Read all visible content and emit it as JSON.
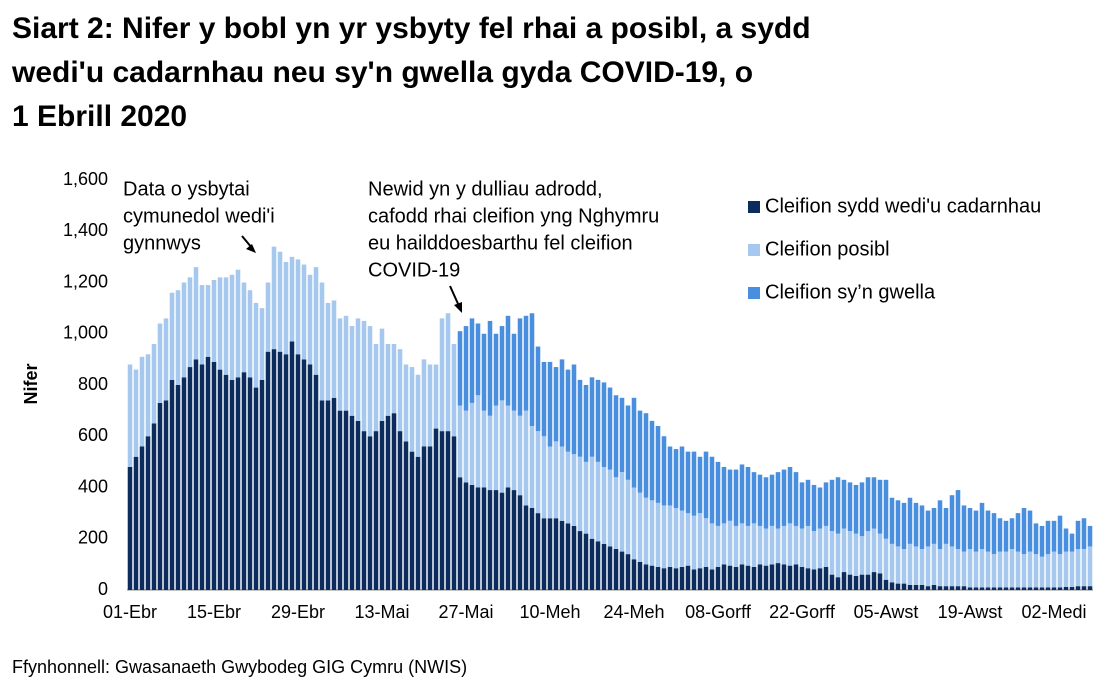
{
  "chart_data": {
    "type": "bar",
    "stacked": true,
    "title": [
      "Siart 2: Nifer y bobl yn yr ysbyty fel rhai a posibl, a sydd",
      "wedi'u cadarnhau neu sy'n gwella gyda COVID-19, o",
      "1 Ebrill 2020"
    ],
    "y_label": "Nifer",
    "source": "Ffynhonnell: Gwasanaeth Gwybodeg GIG Cymru (NWIS)",
    "annotations": [
      {
        "lines": [
          "Data o ysbytai",
          "cymunedol wedi'i",
          "gynnwys"
        ]
      },
      {
        "lines": [
          "Newid yn y dulliau adrodd,",
          "cafodd rhai cleifion yng Nghymru",
          "eu hailddoesbarthu fel cleifion",
          "COVID-19"
        ]
      }
    ],
    "ylim": [
      0,
      1600
    ],
    "yticks": [
      0,
      200,
      400,
      600,
      800,
      {
        "value": 1000,
        "label": "1,000"
      },
      {
        "value": 1200,
        "label": "1,200"
      },
      {
        "value": 1400,
        "label": "1,400"
      },
      {
        "value": 1600,
        "label": "1,600"
      }
    ],
    "grid": false,
    "legend": "top-right",
    "categories": [
      "01-Ebr",
      null,
      null,
      null,
      null,
      null,
      null,
      null,
      null,
      null,
      null,
      null,
      null,
      null,
      "15-Ebr",
      null,
      null,
      null,
      null,
      null,
      null,
      null,
      null,
      null,
      null,
      null,
      null,
      null,
      "29-Ebr",
      null,
      null,
      null,
      null,
      null,
      null,
      null,
      null,
      null,
      null,
      null,
      null,
      null,
      "13-Mai",
      null,
      null,
      null,
      null,
      null,
      null,
      null,
      null,
      null,
      null,
      null,
      null,
      null,
      "27-Mai",
      null,
      null,
      null,
      null,
      null,
      null,
      null,
      null,
      null,
      null,
      null,
      null,
      null,
      "10-Meh",
      null,
      null,
      null,
      null,
      null,
      null,
      null,
      null,
      null,
      null,
      null,
      null,
      null,
      "24-Meh",
      null,
      null,
      null,
      null,
      null,
      null,
      null,
      null,
      null,
      null,
      null,
      null,
      null,
      "08-Gorff",
      null,
      null,
      null,
      null,
      null,
      null,
      null,
      null,
      null,
      null,
      null,
      null,
      null,
      "22-Gorff",
      null,
      null,
      null,
      null,
      null,
      null,
      null,
      null,
      null,
      null,
      null,
      null,
      null,
      "05-Awst",
      null,
      null,
      null,
      null,
      null,
      null,
      null,
      null,
      null,
      null,
      null,
      null,
      null,
      "19-Awst",
      null,
      null,
      null,
      null,
      null,
      null,
      null,
      null,
      null,
      null,
      null,
      null,
      null,
      "02-Medi",
      null,
      null,
      null,
      null,
      null,
      null
    ],
    "series": [
      {
        "name": "Cleifion sydd wedi'u cadarnhau",
        "color": "#0c2c5e",
        "values": [
          480,
          520,
          560,
          600,
          650,
          730,
          740,
          820,
          800,
          830,
          870,
          900,
          880,
          910,
          890,
          860,
          840,
          820,
          830,
          850,
          830,
          790,
          820,
          930,
          940,
          930,
          920,
          970,
          920,
          900,
          880,
          840,
          740,
          740,
          750,
          700,
          700,
          680,
          660,
          620,
          600,
          620,
          660,
          680,
          690,
          620,
          580,
          540,
          520,
          560,
          560,
          630,
          620,
          620,
          600,
          440,
          420,
          410,
          400,
          400,
          390,
          390,
          380,
          400,
          390,
          370,
          330,
          320,
          300,
          280,
          280,
          280,
          270,
          260,
          250,
          230,
          220,
          200,
          190,
          180,
          170,
          160,
          150,
          140,
          120,
          110,
          100,
          95,
          90,
          85,
          90,
          85,
          90,
          95,
          80,
          85,
          90,
          80,
          90,
          100,
          95,
          90,
          100,
          95,
          90,
          100,
          95,
          100,
          105,
          100,
          95,
          100,
          90,
          85,
          80,
          85,
          90,
          60,
          50,
          70,
          60,
          55,
          60,
          60,
          70,
          65,
          40,
          30,
          25,
          25,
          20,
          20,
          20,
          15,
          20,
          15,
          15,
          15,
          15,
          15,
          10,
          10,
          10,
          10,
          10,
          10,
          10,
          10,
          10,
          10,
          10,
          10,
          10,
          10,
          10,
          10,
          12,
          12,
          15,
          15,
          15
        ]
      },
      {
        "name": "Cleifion posibl",
        "color": "#a6c8ef",
        "values": [
          400,
          340,
          350,
          320,
          310,
          310,
          320,
          340,
          370,
          370,
          350,
          360,
          310,
          280,
          320,
          360,
          380,
          410,
          420,
          350,
          340,
          330,
          280,
          270,
          400,
          390,
          360,
          330,
          370,
          370,
          350,
          420,
          460,
          380,
          380,
          360,
          370,
          350,
          400,
          430,
          430,
          340,
          360,
          280,
          270,
          320,
          300,
          330,
          320,
          340,
          320,
          250,
          440,
          460,
          360,
          280,
          280,
          320,
          360,
          300,
          290,
          330,
          360,
          320,
          310,
          310,
          370,
          320,
          320,
          320,
          280,
          300,
          290,
          280,
          280,
          290,
          280,
          320,
          310,
          300,
          300,
          280,
          310,
          290,
          280,
          270,
          260,
          255,
          250,
          245,
          240,
          235,
          220,
          205,
          210,
          215,
          190,
          180,
          160,
          160,
          175,
          160,
          160,
          155,
          170,
          150,
          145,
          150,
          135,
          150,
          165,
          150,
          150,
          165,
          150,
          155,
          160,
          170,
          170,
          170,
          170,
          165,
          150,
          170,
          170,
          155,
          160,
          150,
          145,
          135,
          160,
          150,
          140,
          155,
          160,
          145,
          165,
          155,
          145,
          135,
          150,
          140,
          150,
          140,
          130,
          140,
          140,
          150,
          140,
          130,
          140,
          130,
          120,
          130,
          140,
          130,
          138,
          138,
          145,
          145,
          155
        ]
      },
      {
        "name": "Cleifion sy’n gwella",
        "color": "#4a8fdf",
        "values": [
          null,
          null,
          null,
          null,
          null,
          null,
          null,
          null,
          null,
          null,
          null,
          null,
          null,
          null,
          null,
          null,
          null,
          null,
          null,
          null,
          null,
          null,
          null,
          null,
          null,
          null,
          null,
          null,
          null,
          null,
          null,
          null,
          null,
          null,
          null,
          null,
          null,
          null,
          null,
          null,
          null,
          null,
          null,
          null,
          null,
          null,
          null,
          null,
          null,
          null,
          null,
          null,
          null,
          null,
          null,
          290,
          330,
          330,
          280,
          300,
          370,
          280,
          290,
          350,
          300,
          380,
          370,
          440,
          330,
          290,
          330,
          290,
          340,
          320,
          350,
          300,
          300,
          310,
          320,
          330,
          320,
          320,
          290,
          290,
          350,
          320,
          330,
          310,
          300,
          270,
          230,
          230,
          250,
          240,
          250,
          220,
          260,
          260,
          250,
          220,
          200,
          220,
          230,
          230,
          200,
          200,
          200,
          200,
          220,
          220,
          220,
          210,
          180,
          180,
          180,
          160,
          170,
          200,
          220,
          190,
          190,
          190,
          210,
          210,
          200,
          210,
          230,
          180,
          180,
          180,
          180,
          170,
          170,
          140,
          140,
          190,
          140,
          200,
          230,
          180,
          160,
          160,
          180,
          160,
          160,
          130,
          120,
          120,
          150,
          180,
          160,
          120,
          120,
          130,
          120,
          150,
          90,
          70,
          110,
          120,
          80
        ]
      }
    ]
  }
}
